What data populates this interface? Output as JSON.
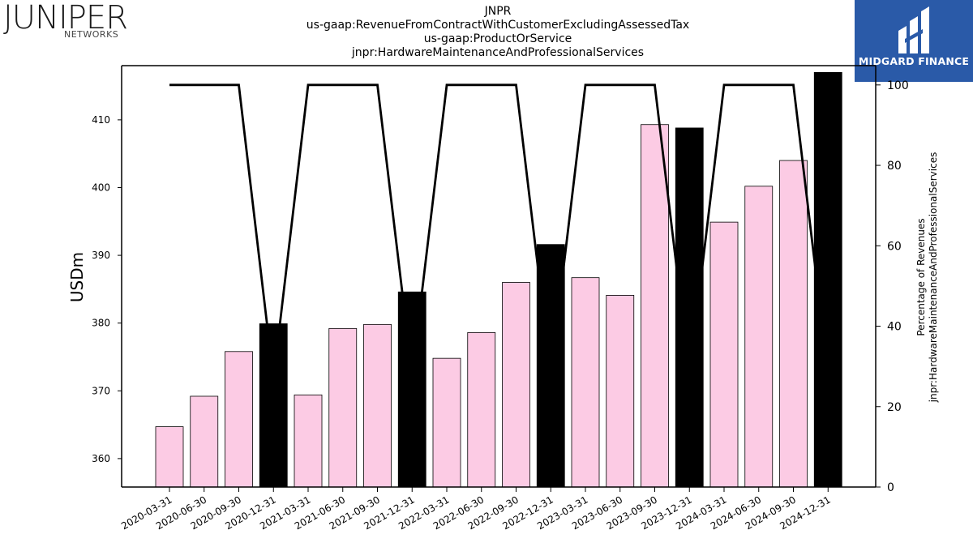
{
  "header": {
    "juniper_logo": {
      "wordmark": "JUNIPER",
      "sub": "NETWORKS"
    },
    "midgard_logo": {
      "text": "MIDGARD FINANCE",
      "background": "#2a5aa8"
    },
    "title_lines": [
      "JNPR",
      "us-gaap:RevenueFromContractWithCustomerExcludingAssessedTax",
      "us-gaap:ProductOrService",
      "jnpr:HardwareMaintenanceAndProfessionalServices"
    ]
  },
  "chart_data": {
    "type": "bar",
    "categories": [
      "2020-03-31",
      "2020-06-30",
      "2020-09-30",
      "2020-12-31",
      "2021-03-31",
      "2021-06-30",
      "2021-09-30",
      "2021-12-31",
      "2022-03-31",
      "2022-06-30",
      "2022-09-30",
      "2022-12-31",
      "2023-03-31",
      "2023-06-30",
      "2023-09-30",
      "2023-12-31",
      "2024-03-31",
      "2024-06-30",
      "2024-09-30",
      "2024-12-31"
    ],
    "values": [
      364.7,
      369.2,
      375.8,
      379.9,
      369.4,
      379.2,
      379.8,
      384.6,
      374.8,
      378.6,
      386.0,
      391.6,
      386.7,
      384.1,
      409.3,
      408.8,
      394.9,
      400.2,
      404.0,
      417.0
    ],
    "bar_colors": [
      "#fccbe4",
      "#fccbe4",
      "#fccbe4",
      "#000000",
      "#fccbe4",
      "#fccbe4",
      "#fccbe4",
      "#000000",
      "#fccbe4",
      "#fccbe4",
      "#fccbe4",
      "#000000",
      "#fccbe4",
      "#fccbe4",
      "#fccbe4",
      "#000000",
      "#fccbe4",
      "#fccbe4",
      "#fccbe4",
      "#000000"
    ],
    "line_values": [
      100,
      100,
      100,
      27,
      100,
      100,
      100,
      28,
      100,
      100,
      100,
      28,
      100,
      100,
      100,
      28,
      100,
      100,
      100,
      28
    ],
    "ylabel": "USDm",
    "y2label_lines": [
      "Percentage of Revenues",
      "jnpr:HardwareMaintenanceAndProfessionalServices"
    ],
    "ylim": [
      355.8,
      418.0
    ],
    "yticks": [
      360,
      370,
      380,
      390,
      400,
      410
    ],
    "y2lim": [
      0,
      104.8
    ],
    "y2ticks": [
      0,
      20,
      40,
      60,
      80,
      100
    ],
    "grid": false,
    "legend": "none"
  }
}
